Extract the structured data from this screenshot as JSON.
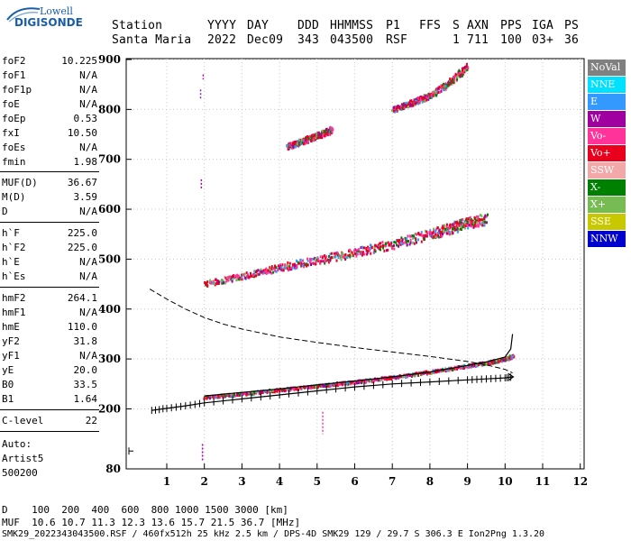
{
  "logo": {
    "top": "Lowell",
    "brand": "DIGISONDE"
  },
  "header": {
    "row1": [
      "Station",
      "YYYY",
      "DAY",
      "DDD",
      "HHMMSS",
      "P1",
      "FFS",
      "S",
      "AXN",
      "PPS",
      "IGA",
      "PS"
    ],
    "row2": [
      "Santa Maria",
      "2022",
      "Dec09",
      "343",
      "043500",
      "RSF",
      "1",
      "711",
      "100",
      "03+",
      "36"
    ]
  },
  "params": {
    "group1": [
      {
        "name": "foF2",
        "value": "10.225"
      },
      {
        "name": "foF1",
        "value": "N/A"
      },
      {
        "name": "foF1p",
        "value": "N/A"
      },
      {
        "name": "foE",
        "value": "N/A"
      },
      {
        "name": "foEp",
        "value": "0.53"
      },
      {
        "name": "fxI",
        "value": "10.50"
      },
      {
        "name": "foEs",
        "value": "N/A"
      },
      {
        "name": "fmin",
        "value": "1.98"
      }
    ],
    "group2": [
      {
        "name": "MUF(D)",
        "value": "36.67"
      },
      {
        "name": "M(D)",
        "value": "3.59"
      },
      {
        "name": "D",
        "value": "N/A"
      }
    ],
    "group3": [
      {
        "name": "h`F",
        "value": "225.0"
      },
      {
        "name": "h`F2",
        "value": "225.0"
      },
      {
        "name": "h`E",
        "value": "N/A"
      },
      {
        "name": "h`Es",
        "value": "N/A"
      }
    ],
    "group4": [
      {
        "name": "hmF2",
        "value": "264.1"
      },
      {
        "name": "hmF1",
        "value": "N/A"
      },
      {
        "name": "hmE",
        "value": "110.0"
      },
      {
        "name": "yF2",
        "value": "31.8"
      },
      {
        "name": "yF1",
        "value": "N/A"
      },
      {
        "name": "yE",
        "value": "20.0"
      },
      {
        "name": "B0",
        "value": "33.5"
      },
      {
        "name": "B1",
        "value": "1.64"
      }
    ],
    "clevel": {
      "name": "C-level",
      "value": "22"
    }
  },
  "autoscaling": {
    "line1": "Auto:",
    "line2": "Artist5",
    "line3": "500200"
  },
  "legend": [
    {
      "label": "NoVal",
      "color": "#808080"
    },
    {
      "label": "NNE",
      "color": "#00e0ff"
    },
    {
      "label": "E",
      "color": "#3399ff"
    },
    {
      "label": "W",
      "color": "#a000a0"
    },
    {
      "label": "Vo-",
      "color": "#ff3399"
    },
    {
      "label": "Vo+",
      "color": "#e8001c"
    },
    {
      "label": "SSW",
      "color": "#f2a8a8"
    },
    {
      "label": "X-",
      "color": "#008000"
    },
    {
      "label": "X+",
      "color": "#77bb55"
    },
    {
      "label": "SSE",
      "color": "#c8c800"
    },
    {
      "label": "NNW",
      "color": "#0000cc"
    }
  ],
  "footer": {
    "line1": "D    100  200  400  600  800 1000 1500 3000 [km]",
    "line2": "MUF  10.6 10.7 11.3 12.3 13.6 15.7 21.5 36.7 [MHz]",
    "line3": "SMK29_2022343043500.RSF / 460fx512h 25 kHz 2.5 km / DPS-4D SMK29 129 / 29.7 S 306.3 E Ion2Png 1.3.20"
  },
  "chart_data": {
    "type": "scatter",
    "xlabel": "",
    "ylabel": "",
    "xlim": [
      0.55,
      12.3
    ],
    "ylim": [
      80,
      900
    ],
    "x_ticks": [
      1,
      2,
      3,
      4,
      5,
      6,
      7,
      8,
      9,
      10,
      11,
      12
    ],
    "y_ticks": [
      80,
      200,
      300,
      400,
      500,
      600,
      700,
      800,
      900
    ],
    "grid": true,
    "series": [
      {
        "kind": "echo-trace",
        "color": "#e8001c",
        "x": [
          2.0,
          3.0,
          4.0,
          5.0,
          6.0,
          7.0,
          8.0,
          9.0,
          9.5,
          10.0,
          10.2
        ],
        "y": [
          225,
          232,
          240,
          248,
          256,
          265,
          276,
          288,
          294,
          302,
          308
        ]
      },
      {
        "kind": "echo-trace",
        "color": "#e8001c",
        "x": [
          2.0,
          3.0,
          4.0,
          5.0,
          6.0,
          7.0,
          8.0,
          8.5,
          9.0,
          9.5
        ],
        "y": [
          452,
          468,
          485,
          500,
          515,
          532,
          552,
          563,
          575,
          582
        ]
      },
      {
        "kind": "echo-trace",
        "color": "#e8001c",
        "x": [
          7.0,
          7.5,
          8.0,
          8.5,
          9.0
        ],
        "y": [
          802,
          815,
          830,
          855,
          890
        ]
      },
      {
        "kind": "echo-trace",
        "color": "#e8001c",
        "x": [
          4.2,
          4.5,
          4.8,
          5.1,
          5.4
        ],
        "y": [
          728,
          735,
          744,
          752,
          762
        ]
      }
    ],
    "true_height_profile": {
      "x": [
        0.6,
        1.0,
        1.5,
        2.0,
        3.0,
        4.0,
        5.0,
        6.0,
        7.0,
        8.0,
        9.0,
        9.5,
        10.0,
        10.2
      ],
      "y": [
        198,
        201,
        206,
        212,
        220,
        228,
        236,
        244,
        250,
        254,
        258,
        260,
        262,
        264
      ]
    },
    "virtual_height_model": {
      "x": [
        2.0,
        3.0,
        4.0,
        5.0,
        6.0,
        7.0,
        8.0,
        9.0,
        9.5,
        10.0,
        10.15,
        10.2
      ],
      "y": [
        226,
        233,
        240,
        248,
        256,
        264,
        274,
        287,
        294,
        304,
        320,
        350
      ]
    },
    "plasma_profile": {
      "x": [
        0.55,
        1.0,
        1.5,
        2.0,
        2.5,
        3.0,
        4.0,
        5.0,
        6.0,
        7.0,
        8.0,
        9.0,
        9.5,
        10.0,
        10.2
      ],
      "y": [
        440,
        420,
        400,
        383,
        370,
        360,
        344,
        333,
        323,
        314,
        305,
        295,
        288,
        279,
        272
      ]
    }
  }
}
